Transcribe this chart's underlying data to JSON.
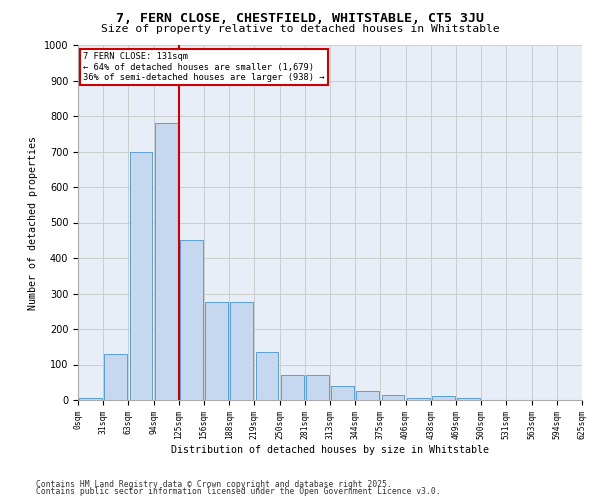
{
  "title_line1": "7, FERN CLOSE, CHESTFIELD, WHITSTABLE, CT5 3JU",
  "title_line2": "Size of property relative to detached houses in Whitstable",
  "xlabel": "Distribution of detached houses by size in Whitstable",
  "ylabel": "Number of detached properties",
  "bar_color": "#c5d8f0",
  "bar_edge_color": "#5a9fd4",
  "tick_labels": [
    "0sqm",
    "31sqm",
    "63sqm",
    "94sqm",
    "125sqm",
    "156sqm",
    "188sqm",
    "219sqm",
    "250sqm",
    "281sqm",
    "313sqm",
    "344sqm",
    "375sqm",
    "406sqm",
    "438sqm",
    "469sqm",
    "500sqm",
    "531sqm",
    "563sqm",
    "594sqm",
    "625sqm"
  ],
  "values": [
    5,
    130,
    700,
    780,
    450,
    275,
    275,
    135,
    70,
    70,
    40,
    25,
    15,
    5,
    12,
    5,
    0,
    0,
    0,
    0
  ],
  "property_bin_index": 4,
  "annotation_title": "7 FERN CLOSE: 131sqm",
  "annotation_line2": "← 64% of detached houses are smaller (1,679)",
  "annotation_line3": "36% of semi-detached houses are larger (938) →",
  "vline_color": "#cc0000",
  "annotation_box_color": "#ffffff",
  "annotation_box_edge": "#cc0000",
  "grid_color": "#cccccc",
  "background_color": "#e8eef8",
  "ylim": [
    0,
    1000
  ],
  "yticks": [
    0,
    100,
    200,
    300,
    400,
    500,
    600,
    700,
    800,
    900,
    1000
  ],
  "footer_line1": "Contains HM Land Registry data © Crown copyright and database right 2025.",
  "footer_line2": "Contains public sector information licensed under the Open Government Licence v3.0."
}
